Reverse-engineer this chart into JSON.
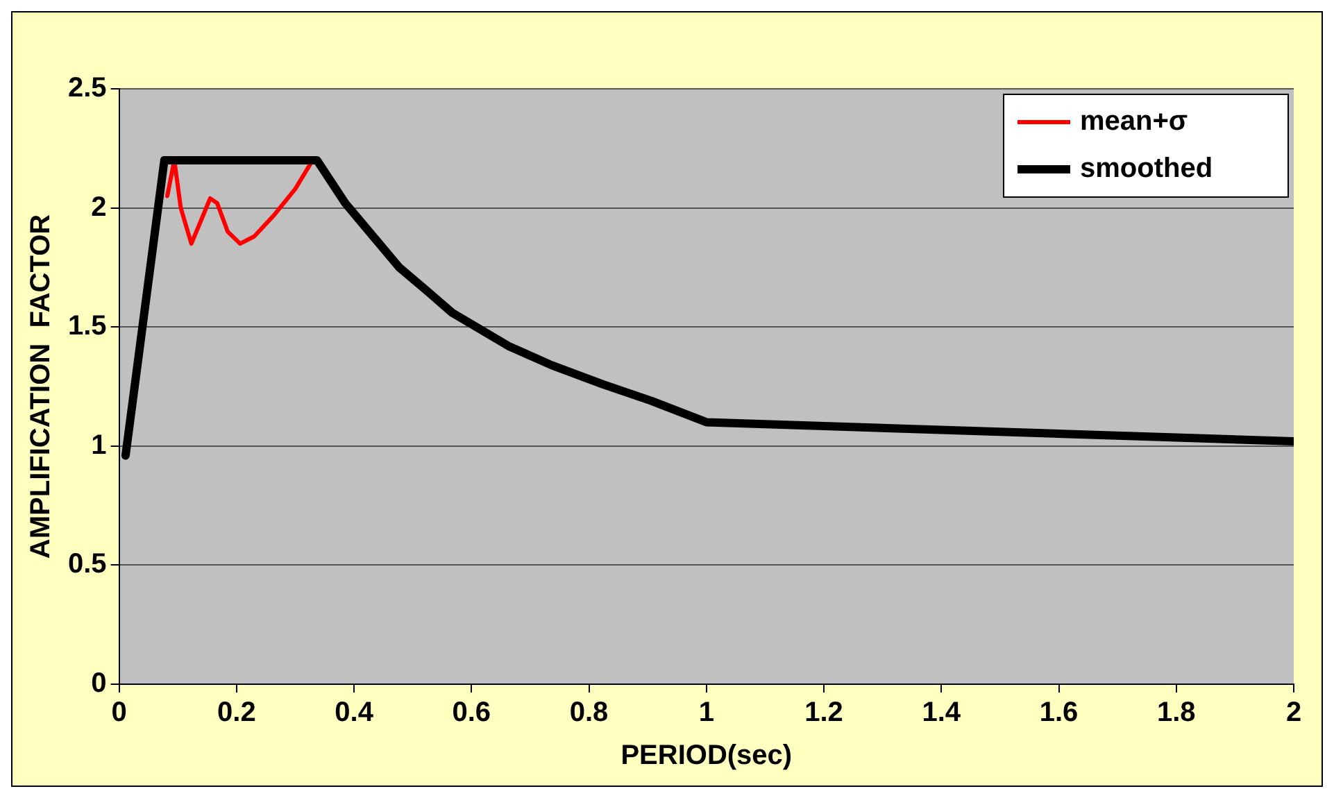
{
  "chart_data": {
    "type": "line",
    "xlabel": "PERIOD(sec)",
    "ylabel": "AMPLIFICATION  FACTOR",
    "xlim": [
      0,
      2
    ],
    "xticks": [
      0,
      0.2,
      0.4,
      0.6,
      0.8,
      1,
      1.2,
      1.4,
      1.6,
      1.8,
      2
    ],
    "ylim": [
      0,
      2.5
    ],
    "yticks": [
      0,
      0.5,
      1,
      1.5,
      2,
      2.5
    ],
    "grid": "y",
    "legend": "top right",
    "marker": "none",
    "line_style": "solid",
    "series": [
      {
        "name": "mean+σ",
        "color": "#ff0000",
        "x": [
          0.082,
          0.094,
          0.105,
          0.123,
          0.14,
          0.155,
          0.167,
          0.185,
          0.206,
          0.23,
          0.264,
          0.3,
          0.327
        ],
        "values": [
          2.05,
          2.2,
          2.0,
          1.85,
          1.95,
          2.04,
          2.02,
          1.9,
          1.85,
          1.88,
          1.97,
          2.08,
          2.19
        ]
      },
      {
        "name": "smoothed",
        "color": "#000000",
        "x": [
          0.011,
          0.077,
          0.337,
          0.385,
          0.477,
          0.525,
          0.567,
          0.663,
          0.736,
          0.823,
          0.906,
          1.0,
          2.0
        ],
        "values": [
          0.96,
          2.2,
          2.2,
          2.02,
          1.75,
          1.65,
          1.56,
          1.42,
          1.34,
          1.26,
          1.19,
          1.1,
          1.02
        ]
      }
    ]
  }
}
